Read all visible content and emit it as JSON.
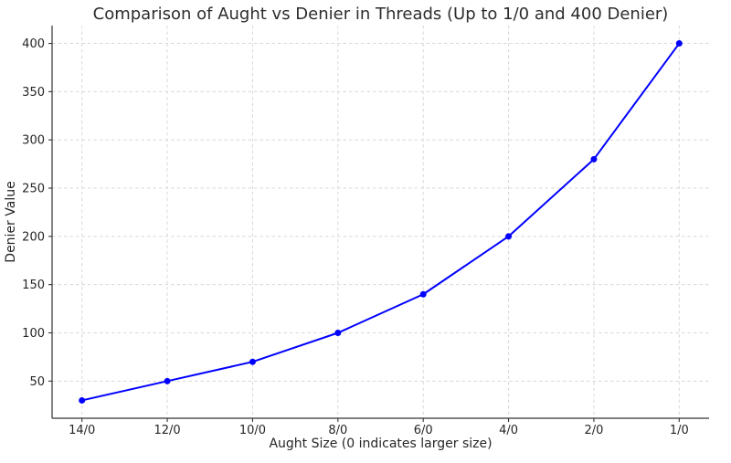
{
  "colors": {
    "line": "#0000ff",
    "grid": "#d8d8d8",
    "axis": "#333333",
    "text": "#262626",
    "title": "#2d2d2d",
    "background": "#ffffff"
  },
  "chart_data": {
    "type": "line",
    "title": "Comparison of Aught vs Denier in Threads (Up to 1/0 and 400 Denier)",
    "xlabel": "Aught Size (0 indicates larger size)",
    "ylabel": "Denier Value",
    "categories": [
      "14/0",
      "12/0",
      "10/0",
      "8/0",
      "6/0",
      "4/0",
      "2/0",
      "1/0"
    ],
    "values": [
      30,
      50,
      70,
      100,
      140,
      200,
      280,
      400
    ],
    "yticks": [
      50,
      100,
      150,
      200,
      250,
      300,
      350,
      400
    ],
    "ylim": [
      11.5,
      418.5
    ],
    "grid": true,
    "legend_position": "none",
    "marker": "circle"
  }
}
